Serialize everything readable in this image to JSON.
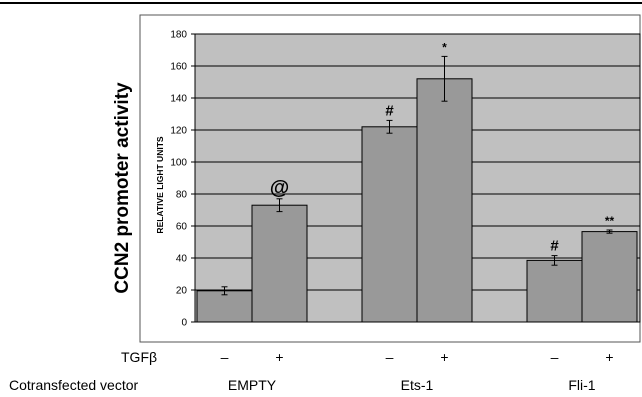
{
  "chart_data": {
    "type": "bar",
    "ylabel_outer": "CCN2 promoter activity",
    "ylabel_inner": "RELATIVE LIGHT UNITS",
    "ylim": [
      0,
      180
    ],
    "yticks": [
      0,
      20,
      40,
      60,
      80,
      100,
      120,
      140,
      160,
      180
    ],
    "grid": true,
    "bar_color": "#999999",
    "plot_bg": "#c0c0c0",
    "row_labels": {
      "treatment": "TGFβ",
      "vector": "Cotransfected vector"
    },
    "groups": [
      {
        "name": "EMPTY",
        "bars": [
          {
            "treatment": "–",
            "value": 19.5,
            "error": 2.5,
            "annotation": ""
          },
          {
            "treatment": "+",
            "value": 73,
            "error": 4,
            "annotation": "@"
          }
        ]
      },
      {
        "name": "Ets-1",
        "bars": [
          {
            "treatment": "–",
            "value": 122,
            "error": 4,
            "annotation": "#"
          },
          {
            "treatment": "+",
            "value": 152,
            "error": 14,
            "annotation": "*"
          }
        ]
      },
      {
        "name": "Fli-1",
        "bars": [
          {
            "treatment": "–",
            "value": 38.5,
            "error": 3,
            "annotation": "#"
          },
          {
            "treatment": "+",
            "value": 56.5,
            "error": 1,
            "annotation": "**"
          }
        ]
      }
    ]
  }
}
